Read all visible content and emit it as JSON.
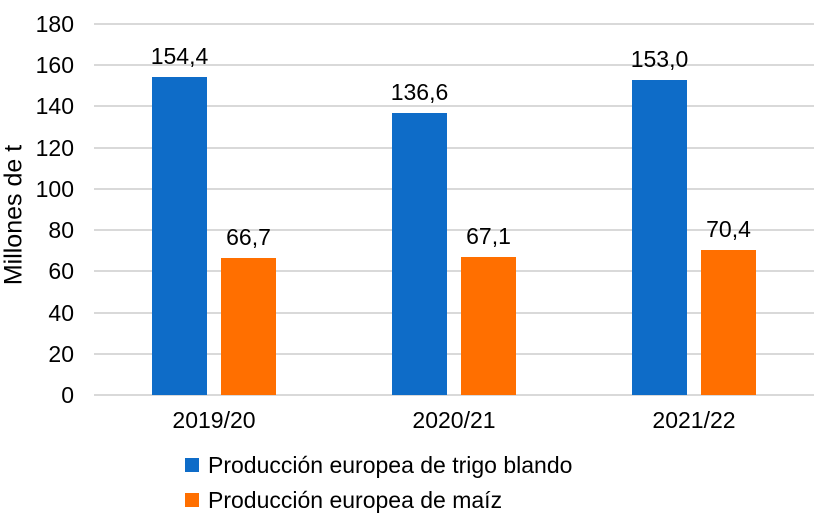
{
  "chart_data": {
    "type": "bar",
    "title": "",
    "ylabel": "Millones de t",
    "xlabel": "",
    "ylim": [
      0,
      180
    ],
    "yticks": [
      0,
      20,
      40,
      60,
      80,
      100,
      120,
      140,
      160,
      180
    ],
    "grid": true,
    "gridline_color": "#d9d9d9",
    "legend_position": "bottom-left",
    "categories": [
      "2019/20",
      "2020/21",
      "2021/22"
    ],
    "series": [
      {
        "name": "Producción europea de trigo blando",
        "color": "#0e6cc8",
        "values": [
          154.4,
          136.6,
          153.0
        ],
        "labels": [
          "154,4",
          "136,6",
          "153,0"
        ]
      },
      {
        "name": "Producción europea de maíz",
        "color": "#ff6f00",
        "values": [
          66.7,
          67.1,
          70.4
        ],
        "labels": [
          "66,7",
          "67,1",
          "70,4"
        ]
      }
    ]
  }
}
